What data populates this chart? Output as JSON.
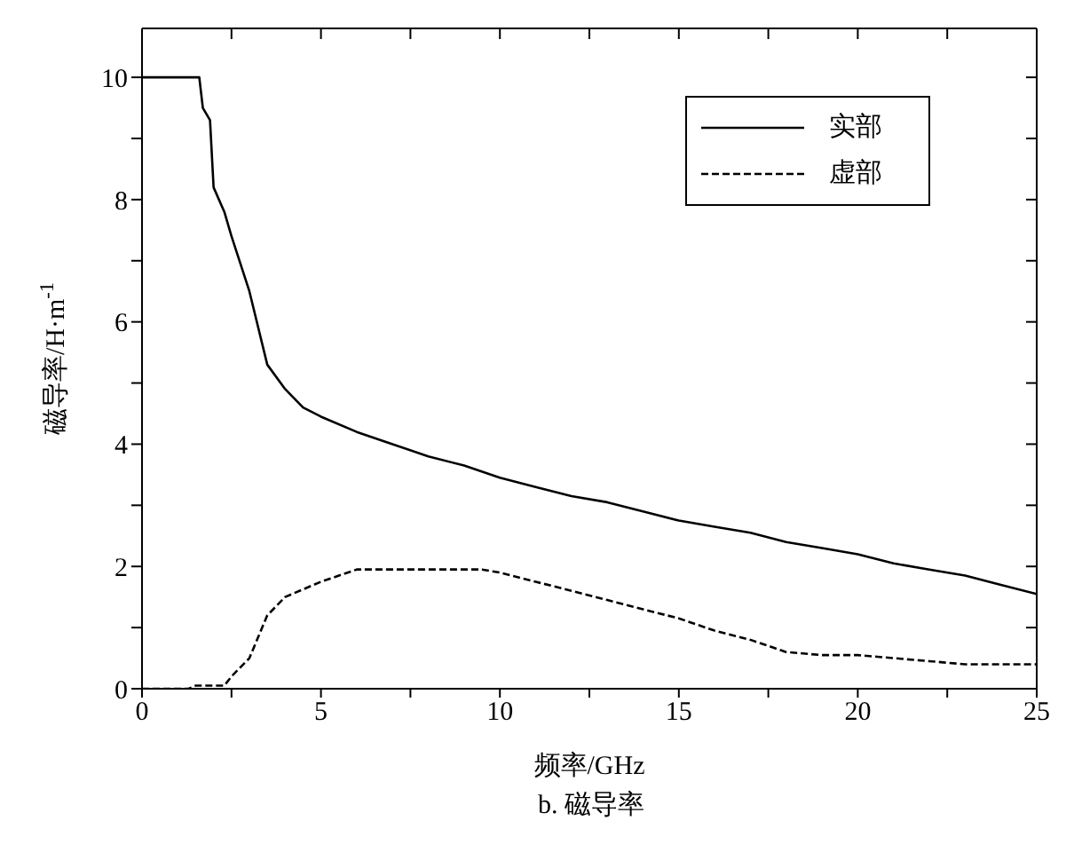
{
  "chart_data": {
    "type": "line",
    "xlabel": "频率/GHz",
    "ylabel": "磁导率/H·m$^{-1}$",
    "annotations": [
      "b.  磁导率"
    ],
    "xlim": [
      0,
      25
    ],
    "xticks": [
      0,
      {
        "value": 2.5,
        "label": null
      },
      5,
      {
        "value": 7.5,
        "label": null
      },
      10,
      {
        "value": 12.5,
        "label": null
      },
      15,
      {
        "value": 17.5,
        "label": null
      },
      20,
      {
        "value": 22.5,
        "label": null
      },
      25
    ],
    "ylim": [
      0,
      10.8
    ],
    "yticks": [
      0,
      {
        "value": 1,
        "label": null
      },
      2,
      {
        "value": 3,
        "label": null
      },
      4,
      {
        "value": 5,
        "label": null
      },
      6,
      {
        "value": 7,
        "label": null
      },
      8,
      {
        "value": 9,
        "label": null
      },
      10
    ],
    "legend": "top right",
    "marker": "none",
    "series": [
      {
        "name": "实部",
        "color": "#000000",
        "line_style": "solid",
        "x": [
          0,
          1,
          1.6,
          1.7,
          1.9,
          2.0,
          2.3,
          2.5,
          3,
          3.5,
          4,
          4.5,
          5,
          6,
          7,
          8,
          9,
          10,
          11,
          12,
          13,
          14,
          15,
          16,
          17,
          18,
          19,
          20,
          21,
          22,
          23,
          24,
          25
        ],
        "values": [
          10,
          10,
          10,
          9.5,
          9.3,
          8.2,
          7.8,
          7.4,
          6.5,
          5.3,
          4.9,
          4.6,
          4.45,
          4.2,
          4.0,
          3.8,
          3.65,
          3.45,
          3.3,
          3.15,
          3.05,
          2.9,
          2.75,
          2.65,
          2.55,
          2.4,
          2.3,
          2.2,
          2.05,
          1.95,
          1.85,
          1.7,
          1.55
        ]
      },
      {
        "name": "虚部",
        "color": "#000000",
        "line_style": "dashed",
        "x": [
          0,
          1.3,
          1.5,
          2.3,
          2.5,
          3,
          3.5,
          4,
          5,
          6,
          7,
          8,
          9,
          9.5,
          10,
          11,
          12,
          13,
          14,
          15,
          16,
          17,
          18,
          19,
          20,
          21,
          22,
          23,
          24,
          25
        ],
        "values": [
          0,
          0,
          0.05,
          0.05,
          0.2,
          0.5,
          1.2,
          1.5,
          1.75,
          1.95,
          1.95,
          1.95,
          1.95,
          1.95,
          1.9,
          1.75,
          1.6,
          1.45,
          1.3,
          1.15,
          0.95,
          0.8,
          0.6,
          0.55,
          0.55,
          0.5,
          0.45,
          0.4,
          0.4,
          0.4
        ]
      }
    ]
  }
}
